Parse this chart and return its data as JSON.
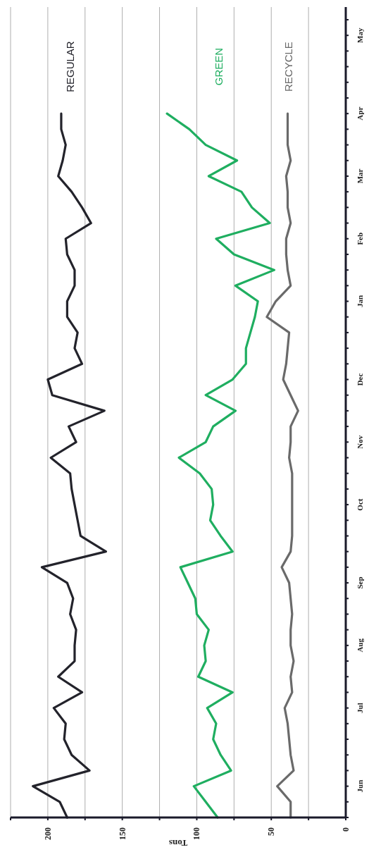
{
  "chart_data": {
    "type": "line",
    "orientation": "horizontal",
    "xlabel": "Tons",
    "categories": [
      null,
      "May",
      null,
      null,
      null,
      null,
      "Apr",
      null,
      null,
      null,
      "Mar",
      null,
      null,
      null,
      "Feb",
      null,
      null,
      null,
      "Jan",
      null,
      null,
      null,
      null,
      "Dec",
      null,
      null,
      null,
      "Nov",
      null,
      null,
      null,
      "Oct",
      null,
      null,
      null,
      null,
      "Sep",
      null,
      null,
      null,
      "Aug",
      null,
      null,
      null,
      "Jul",
      null,
      null,
      null,
      null,
      "Jun",
      null,
      null
    ],
    "series": [
      {
        "name": "REGULAR",
        "color": "#23232b",
        "values": [
          null,
          null,
          null,
          null,
          null,
          null,
          191,
          191,
          188,
          190,
          193,
          184,
          177,
          171,
          188,
          187,
          182,
          182,
          187,
          187,
          180,
          182,
          177,
          200,
          197,
          162,
          186,
          181,
          198,
          185,
          184,
          182,
          180,
          178,
          161,
          204,
          187,
          183,
          185,
          181,
          182,
          182,
          193,
          177,
          196,
          188,
          189,
          184,
          172,
          210,
          192,
          187
        ]
      },
      {
        "name": "GREEN",
        "color": "#1fae60",
        "values": [
          null,
          null,
          null,
          null,
          null,
          null,
          120,
          105,
          94,
          73,
          92,
          70,
          63,
          51,
          87,
          75,
          48,
          74,
          59,
          61,
          64,
          67,
          67,
          76,
          94,
          74,
          89,
          94,
          112,
          98,
          90,
          89,
          91,
          84,
          76,
          111,
          106,
          101,
          100,
          92,
          95,
          94,
          99,
          76,
          93,
          87,
          89,
          84,
          77,
          102,
          94,
          86
        ]
      },
      {
        "name": "RECYCLE",
        "color": "#6a6a6a",
        "values": [
          null,
          null,
          null,
          null,
          null,
          null,
          39,
          39,
          39,
          37,
          40,
          39,
          39,
          37,
          40,
          40,
          39,
          37,
          47,
          53,
          38,
          39,
          40,
          42,
          37,
          32,
          37,
          37,
          38,
          36,
          36,
          36,
          36,
          36,
          37,
          43,
          38,
          37,
          36,
          37,
          37,
          35,
          37,
          36,
          41,
          39,
          38,
          37,
          35,
          46,
          37,
          37
        ]
      }
    ],
    "xlim": [
      225,
      0
    ],
    "xticks": [
      {
        "value": 225,
        "label": null
      },
      200,
      {
        "value": 175,
        "label": null
      },
      150,
      {
        "value": 125,
        "label": null
      },
      100,
      {
        "value": 75,
        "label": null
      },
      50,
      {
        "value": 25,
        "label": null
      },
      0
    ],
    "grid": "x",
    "legend": false,
    "marker": "none",
    "line_style": "solid"
  }
}
